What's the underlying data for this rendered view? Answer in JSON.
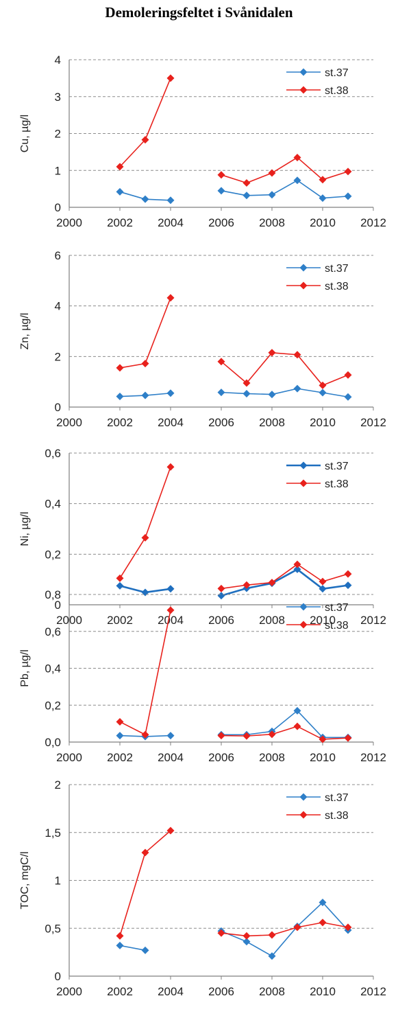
{
  "title": "Demoleringsfeltet i Svånidalen",
  "chart_data": [
    {
      "type": "line",
      "ylabel": "Cu, µg/l",
      "xlim": [
        2000,
        2012
      ],
      "ylim": [
        0,
        4
      ],
      "x_ticks": [
        "2000",
        "2002",
        "2004",
        "2006",
        "2008",
        "2010",
        "2012"
      ],
      "y_ticks": [
        "0",
        "1",
        "2",
        "3",
        "4"
      ],
      "grid": "horizontal dashed",
      "legend": "top-right",
      "series": [
        {
          "name": "st.37",
          "color": "#2e7fc8",
          "x": [
            2002,
            2003,
            2004,
            2006,
            2007,
            2008,
            2009,
            2010,
            2011
          ],
          "values": [
            0.42,
            0.22,
            0.19,
            0.45,
            0.32,
            0.34,
            0.73,
            0.25,
            0.3
          ]
        },
        {
          "name": "st.38",
          "color": "#e8211c",
          "x": [
            2002,
            2003,
            2004,
            2006,
            2007,
            2008,
            2009,
            2010,
            2011
          ],
          "values": [
            1.1,
            1.83,
            3.5,
            0.88,
            0.66,
            0.93,
            1.35,
            0.75,
            0.97
          ]
        }
      ]
    },
    {
      "type": "line",
      "ylabel": "Zn, µg/l",
      "xlim": [
        2000,
        2012
      ],
      "ylim": [
        0,
        6
      ],
      "x_ticks": [
        "2000",
        "2002",
        "2004",
        "2006",
        "2008",
        "2010",
        "2012"
      ],
      "y_ticks": [
        "0",
        "2",
        "4",
        "6"
      ],
      "grid": "horizontal dashed",
      "legend": "top-right",
      "series": [
        {
          "name": "st.37",
          "color": "#2e7fc8",
          "x": [
            2002,
            2003,
            2004,
            2006,
            2007,
            2008,
            2009,
            2010,
            2011
          ],
          "values": [
            0.42,
            0.46,
            0.55,
            0.58,
            0.53,
            0.5,
            0.73,
            0.57,
            0.4
          ]
        },
        {
          "name": "st.38",
          "color": "#e8211c",
          "x": [
            2002,
            2003,
            2004,
            2006,
            2007,
            2008,
            2009,
            2010,
            2011
          ],
          "values": [
            1.55,
            1.72,
            4.32,
            1.8,
            0.95,
            2.15,
            2.07,
            0.86,
            1.27
          ]
        }
      ]
    },
    {
      "type": "line",
      "ylabel": "Ni, µg/l",
      "xlim": [
        2000,
        2012
      ],
      "ylim": [
        0,
        0.6
      ],
      "x_ticks": [
        "2000",
        "2002",
        "2004",
        "2006",
        "2008",
        "2010",
        "2012"
      ],
      "y_ticks": [
        "0",
        "0,2",
        "0,4",
        "0,6"
      ],
      "grid": "horizontal dashed",
      "legend": "top-right",
      "series": [
        {
          "name": "st.37",
          "color": "#1f6fbf",
          "x": [
            2002,
            2003,
            2004,
            2006,
            2007,
            2008,
            2009,
            2010,
            2011
          ],
          "values": [
            0.075,
            0.049,
            0.063,
            0.036,
            0.065,
            0.085,
            0.14,
            0.063,
            0.077
          ]
        },
        {
          "name": "st.38",
          "color": "#e8211c",
          "x": [
            2002,
            2003,
            2004,
            2006,
            2007,
            2008,
            2009,
            2010,
            2011
          ],
          "values": [
            0.105,
            0.265,
            0.545,
            0.064,
            0.078,
            0.088,
            0.16,
            0.092,
            0.122
          ]
        }
      ]
    },
    {
      "type": "line",
      "ylabel": "Pb, µg/l",
      "xlim": [
        2000,
        2012
      ],
      "ylim": [
        0,
        0.8
      ],
      "x_ticks": [
        "2000",
        "2002",
        "2004",
        "2006",
        "2008",
        "2010",
        "2012"
      ],
      "y_ticks": [
        "0,0",
        "0,2",
        "0,4",
        "0,6",
        "0,8"
      ],
      "grid": "horizontal dashed",
      "legend": "top-right",
      "series": [
        {
          "name": "st.37",
          "color": "#2e7fc8",
          "x": [
            2002,
            2003,
            2004,
            2006,
            2007,
            2008,
            2009,
            2010,
            2011
          ],
          "values": [
            0.035,
            0.03,
            0.035,
            0.04,
            0.04,
            0.058,
            0.17,
            0.025,
            0.025
          ]
        },
        {
          "name": "st.38",
          "color": "#e8211c",
          "x": [
            2002,
            2003,
            2004,
            2006,
            2007,
            2008,
            2009,
            2010,
            2011
          ],
          "values": [
            0.11,
            0.04,
            0.715,
            0.035,
            0.033,
            0.042,
            0.085,
            0.015,
            0.022
          ]
        }
      ]
    },
    {
      "type": "line",
      "ylabel": "TOC, mgC/l",
      "xlim": [
        2000,
        2012
      ],
      "ylim": [
        0,
        2
      ],
      "x_ticks": [
        "2000",
        "2002",
        "2004",
        "2006",
        "2008",
        "2010",
        "2012"
      ],
      "y_ticks": [
        "0",
        "0,5",
        "1",
        "1,5",
        "2"
      ],
      "grid": "horizontal dashed",
      "legend": "top-right",
      "series": [
        {
          "name": "st.37",
          "color": "#2e7fc8",
          "x": [
            2002,
            2003,
            2006,
            2007,
            2008,
            2009,
            2010,
            2011
          ],
          "values": [
            0.32,
            0.27,
            0.47,
            0.36,
            0.21,
            0.52,
            0.77,
            0.48
          ]
        },
        {
          "name": "st.38",
          "color": "#e8211c",
          "x": [
            2002,
            2003,
            2004,
            2006,
            2007,
            2008,
            2009,
            2010,
            2011
          ],
          "values": [
            0.42,
            1.29,
            1.52,
            0.45,
            0.42,
            0.43,
            0.51,
            0.56,
            0.51
          ]
        }
      ]
    }
  ]
}
